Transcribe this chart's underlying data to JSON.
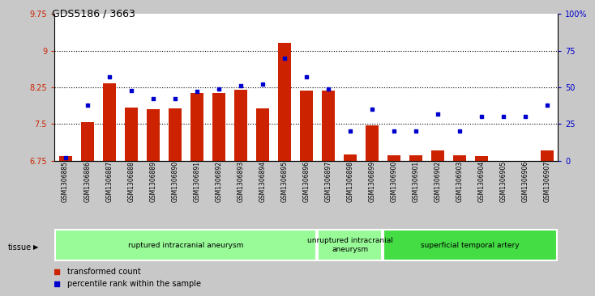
{
  "title": "GDS5186 / 3663",
  "samples": [
    "GSM1306885",
    "GSM1306886",
    "GSM1306887",
    "GSM1306888",
    "GSM1306889",
    "GSM1306890",
    "GSM1306891",
    "GSM1306892",
    "GSM1306893",
    "GSM1306894",
    "GSM1306895",
    "GSM1306896",
    "GSM1306897",
    "GSM1306898",
    "GSM1306899",
    "GSM1306900",
    "GSM1306901",
    "GSM1306902",
    "GSM1306903",
    "GSM1306904",
    "GSM1306905",
    "GSM1306906",
    "GSM1306907"
  ],
  "bar_values": [
    6.84,
    7.54,
    8.34,
    7.84,
    7.8,
    7.82,
    8.14,
    8.14,
    8.2,
    7.82,
    9.16,
    8.18,
    8.18,
    6.88,
    7.48,
    6.86,
    6.86,
    6.96,
    6.86,
    6.84,
    6.68,
    6.68,
    6.96
  ],
  "percentile_pct": [
    2,
    38,
    57,
    48,
    42,
    42,
    47,
    49,
    51,
    52,
    70,
    57,
    49,
    20,
    35,
    20,
    20,
    32,
    20,
    30,
    30,
    30,
    38
  ],
  "ylim_left": [
    6.75,
    9.75
  ],
  "ylim_right": [
    0,
    100
  ],
  "yticks_left": [
    6.75,
    7.5,
    8.25,
    9.0,
    9.75
  ],
  "yticks_right": [
    0,
    25,
    50,
    75,
    100
  ],
  "ytick_labels_left": [
    "6.75",
    "7.5",
    "8.25",
    "9",
    "9.75"
  ],
  "ytick_labels_right": [
    "0",
    "25",
    "50",
    "75",
    "100%"
  ],
  "groups": [
    {
      "label": "ruptured intracranial aneurysm",
      "start": 0,
      "end": 12,
      "color": "#90EE90"
    },
    {
      "label": "unruptured intracranial\naneurysm",
      "start": 12,
      "end": 15,
      "color": "#90EE90"
    },
    {
      "label": "superficial temporal artery",
      "start": 15,
      "end": 23,
      "color": "#33CC33"
    }
  ],
  "bar_color": "#CC2200",
  "dot_color": "#0000CC",
  "bar_bottom": 6.75,
  "bg_color": "#C8C8C8",
  "plot_bg_color": "#FFFFFF",
  "legend_bar_label": "transformed count",
  "legend_dot_label": "percentile rank within the sample",
  "tissue_label": "tissue",
  "left_axis_color": "#CC2200",
  "right_axis_color": "#0000CC",
  "gridline_y": [
    7.5,
    8.25,
    9.0
  ],
  "group_border_color": "#FFFFFF"
}
